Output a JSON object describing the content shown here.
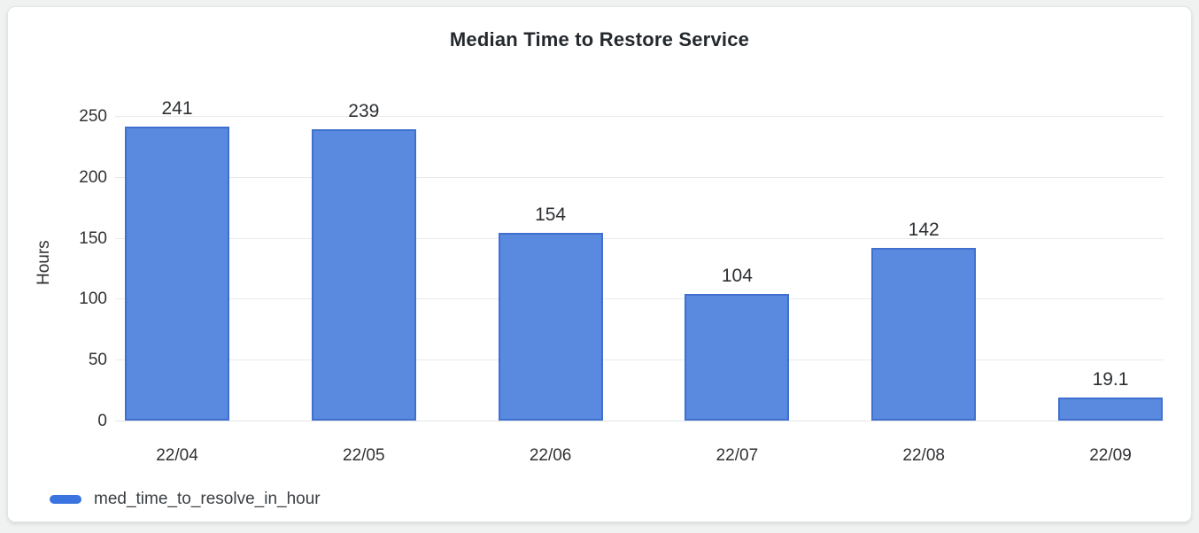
{
  "chart_data": {
    "type": "bar",
    "title": "Median Time to Restore Service",
    "xlabel": "",
    "ylabel": "Hours",
    "categories": [
      "22/04",
      "22/05",
      "22/06",
      "22/07",
      "22/08",
      "22/09"
    ],
    "series": [
      {
        "name": "med_time_to_resolve_in_hour",
        "values": [
          241,
          239,
          154,
          104,
          142,
          19.1
        ]
      }
    ],
    "value_labels": [
      "241",
      "239",
      "154",
      "104",
      "142",
      "19.1"
    ],
    "y_ticks": [
      0,
      50,
      100,
      150,
      200,
      250
    ],
    "ylim": [
      0,
      250
    ],
    "grid": true,
    "legend_position": "bottom-left",
    "colors": {
      "bar_fill": "#5a8ae0",
      "bar_stroke": "#3f70cf",
      "legend_swatch": "#3b74e0",
      "gridline": "#e9eaea",
      "title_text": "#24292e",
      "axis_text": "#303134",
      "card_background": "#ffffff",
      "page_background": "#f0f2f1"
    }
  },
  "legend": {
    "label": "med_time_to_resolve_in_hour"
  }
}
